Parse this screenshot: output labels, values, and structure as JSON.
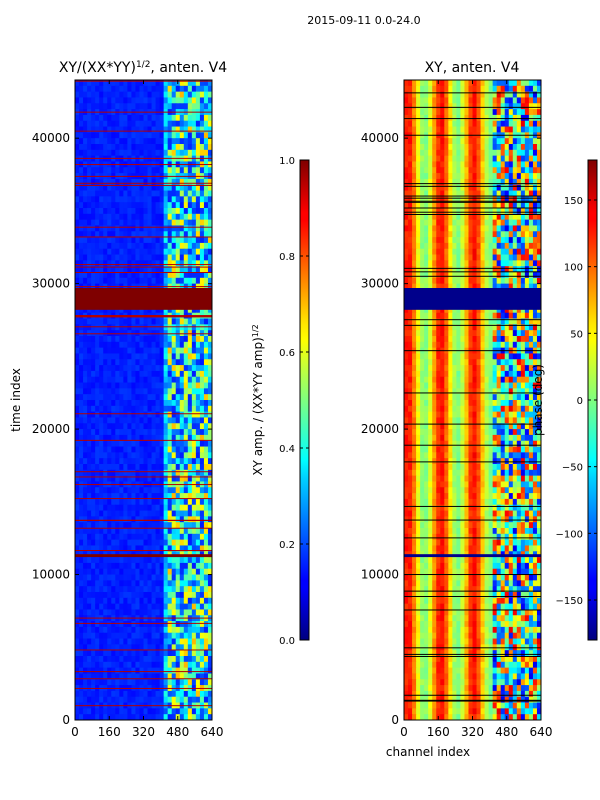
{
  "figure": {
    "title": "2015-09-11 0.0-24.0"
  },
  "chart_data": [
    {
      "type": "heatmap",
      "title": "XY/(XX*YY)^1/2, anten. V4",
      "title_main": "XY/(XX*YY)",
      "title_sup": "1/2",
      "title_suffix": ", anten. V4",
      "xlabel": "",
      "ylabel": "time index",
      "xlim": [
        0,
        640
      ],
      "ylim": [
        0,
        44000
      ],
      "xticks": [
        0,
        160,
        320,
        480,
        640
      ],
      "yticks": [
        0,
        10000,
        20000,
        30000,
        40000
      ],
      "flag_band": [
        28200,
        29700
      ],
      "flag_rows": [
        11200,
        11400
      ],
      "colorbar": {
        "label": "XY amp. / (XX*YY amp)^1/2",
        "label_main": "XY amp. / (XX*YY amp)",
        "label_sup": "1/2",
        "range": [
          0.0,
          1.0
        ],
        "ticks": [
          0.0,
          0.2,
          0.4,
          0.6,
          0.8,
          1.0
        ],
        "tick_labels": [
          "0.0",
          "0.2",
          "0.4",
          "0.6",
          "0.8",
          "1.0"
        ]
      }
    },
    {
      "type": "heatmap",
      "title": "XY, anten. V4",
      "xlabel": "channel index",
      "ylabel": "",
      "xlim": [
        0,
        640
      ],
      "ylim": [
        0,
        44000
      ],
      "xticks": [
        0,
        160,
        320,
        480,
        640
      ],
      "yticks": [
        0,
        10000,
        20000,
        30000,
        40000
      ],
      "flag_band": [
        28200,
        29700
      ],
      "flag_rows": [
        11200,
        11400
      ],
      "colorbar": {
        "label": "phase (deg)",
        "range": [
          -180,
          180
        ],
        "ticks": [
          -150,
          -100,
          -50,
          0,
          50,
          100,
          150
        ],
        "tick_labels": [
          "−150",
          "−100",
          "−50",
          "0",
          "50",
          "100",
          "150"
        ]
      }
    }
  ]
}
